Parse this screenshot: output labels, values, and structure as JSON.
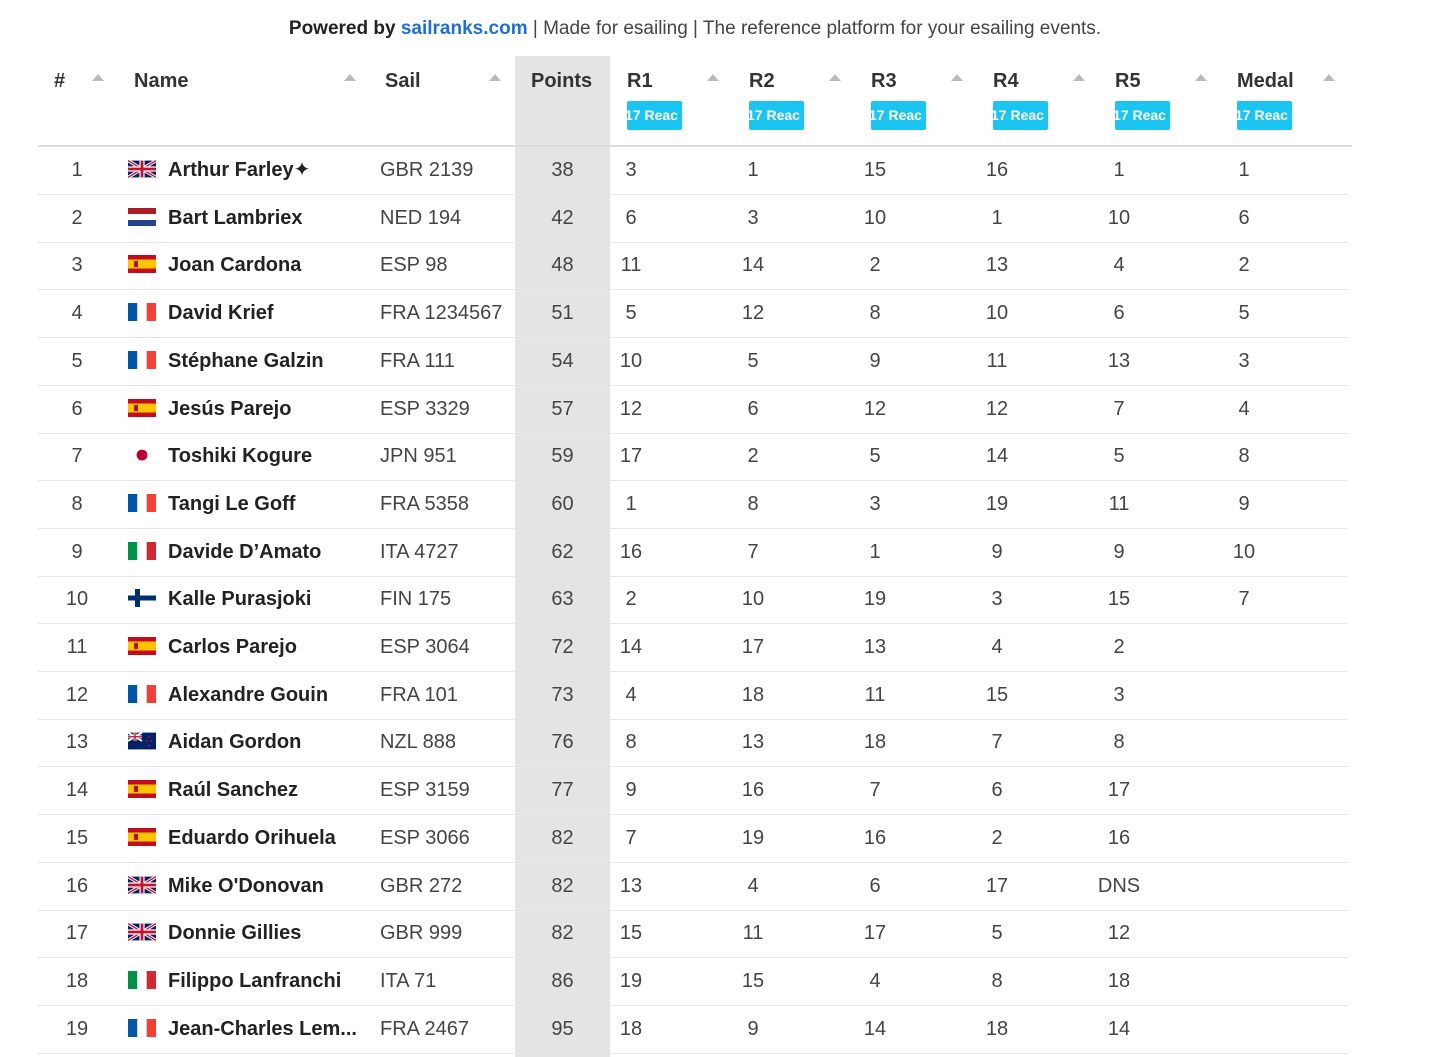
{
  "powered": {
    "prefix": "Powered by",
    "link": "sailranks.com",
    "suffix": " | Made for esailing | The reference platform for your esailing events."
  },
  "columns": {
    "rank": "#",
    "name": "Name",
    "sail": "Sail",
    "points": "Points",
    "races": [
      {
        "label": "R1",
        "badge": "17 Reac"
      },
      {
        "label": "R2",
        "badge": "17 Reac"
      },
      {
        "label": "R3",
        "badge": "17 Reac"
      },
      {
        "label": "R4",
        "badge": "17 Reac"
      },
      {
        "label": "R5",
        "badge": "17 Reac"
      },
      {
        "label": "Medal",
        "badge": "17 Reac"
      }
    ]
  },
  "rows": [
    {
      "rank": "1",
      "flag": "GBR",
      "name": "Arthur Farley✦",
      "sail": "GBR 2139",
      "points": "38",
      "r": [
        "3",
        "1",
        "15",
        "16",
        "1",
        "1"
      ]
    },
    {
      "rank": "2",
      "flag": "NED",
      "name": "Bart Lambriex",
      "sail": "NED 194",
      "points": "42",
      "r": [
        "6",
        "3",
        "10",
        "1",
        "10",
        "6"
      ]
    },
    {
      "rank": "3",
      "flag": "ESP",
      "name": "Joan Cardona",
      "sail": "ESP 98",
      "points": "48",
      "r": [
        "11",
        "14",
        "2",
        "13",
        "4",
        "2"
      ]
    },
    {
      "rank": "4",
      "flag": "FRA",
      "name": "David Krief",
      "sail": "FRA 1234567",
      "points": "51",
      "r": [
        "5",
        "12",
        "8",
        "10",
        "6",
        "5"
      ]
    },
    {
      "rank": "5",
      "flag": "FRA",
      "name": "Stéphane Galzin",
      "sail": "FRA 111",
      "points": "54",
      "r": [
        "10",
        "5",
        "9",
        "11",
        "13",
        "3"
      ]
    },
    {
      "rank": "6",
      "flag": "ESP",
      "name": "Jesús Parejo",
      "sail": "ESP 3329",
      "points": "57",
      "r": [
        "12",
        "6",
        "12",
        "12",
        "7",
        "4"
      ]
    },
    {
      "rank": "7",
      "flag": "JPN",
      "name": "Toshiki Kogure",
      "sail": "JPN 951",
      "points": "59",
      "r": [
        "17",
        "2",
        "5",
        "14",
        "5",
        "8"
      ]
    },
    {
      "rank": "8",
      "flag": "FRA",
      "name": "Tangi Le Goff",
      "sail": "FRA 5358",
      "points": "60",
      "r": [
        "1",
        "8",
        "3",
        "19",
        "11",
        "9"
      ]
    },
    {
      "rank": "9",
      "flag": "ITA",
      "name": "Davide D’Amato",
      "sail": "ITA 4727",
      "points": "62",
      "r": [
        "16",
        "7",
        "1",
        "9",
        "9",
        "10"
      ]
    },
    {
      "rank": "10",
      "flag": "FIN",
      "name": "Kalle Purasjoki",
      "sail": "FIN 175",
      "points": "63",
      "r": [
        "2",
        "10",
        "19",
        "3",
        "15",
        "7"
      ]
    },
    {
      "rank": "11",
      "flag": "ESP",
      "name": "Carlos Parejo",
      "sail": "ESP 3064",
      "points": "72",
      "r": [
        "14",
        "17",
        "13",
        "4",
        "2",
        ""
      ]
    },
    {
      "rank": "12",
      "flag": "FRA",
      "name": "Alexandre Gouin",
      "sail": "FRA 101",
      "points": "73",
      "r": [
        "4",
        "18",
        "11",
        "15",
        "3",
        ""
      ]
    },
    {
      "rank": "13",
      "flag": "NZL",
      "name": "Aidan Gordon",
      "sail": "NZL 888",
      "points": "76",
      "r": [
        "8",
        "13",
        "18",
        "7",
        "8",
        ""
      ]
    },
    {
      "rank": "14",
      "flag": "ESP",
      "name": "Raúl Sanchez",
      "sail": "ESP 3159",
      "points": "77",
      "r": [
        "9",
        "16",
        "7",
        "6",
        "17",
        ""
      ]
    },
    {
      "rank": "15",
      "flag": "ESP",
      "name": "Eduardo Orihuela",
      "sail": "ESP 3066",
      "points": "82",
      "r": [
        "7",
        "19",
        "16",
        "2",
        "16",
        ""
      ]
    },
    {
      "rank": "16",
      "flag": "GBR",
      "name": "Mike O'Donovan",
      "sail": "GBR 272",
      "points": "82",
      "r": [
        "13",
        "4",
        "6",
        "17",
        "DNS",
        ""
      ]
    },
    {
      "rank": "17",
      "flag": "GBR",
      "name": "Donnie Gillies",
      "sail": "GBR 999",
      "points": "82",
      "r": [
        "15",
        "11",
        "17",
        "5",
        "12",
        ""
      ]
    },
    {
      "rank": "18",
      "flag": "ITA",
      "name": "Filippo Lanfranchi",
      "sail": "ITA 71",
      "points": "86",
      "r": [
        "19",
        "15",
        "4",
        "8",
        "18",
        ""
      ]
    },
    {
      "rank": "19",
      "flag": "FRA",
      "name": "Jean-Charles Lem...",
      "sail": "FRA 2467",
      "points": "95",
      "r": [
        "18",
        "9",
        "14",
        "18",
        "14",
        ""
      ]
    }
  ]
}
